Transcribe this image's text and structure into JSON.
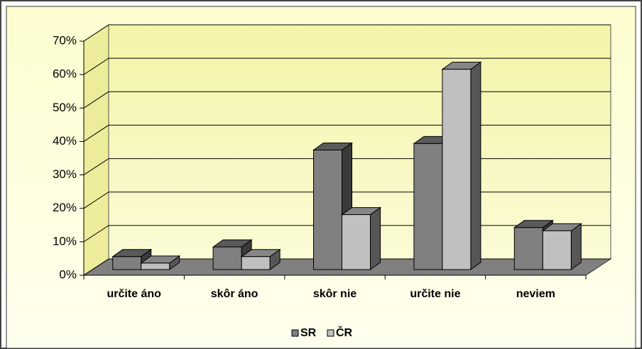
{
  "chart_data": {
    "type": "bar3d",
    "categories": [
      "určite áno",
      "skôr áno",
      "skôr nie",
      "určite nie",
      "neviem"
    ],
    "series": [
      {
        "name": "SR",
        "color": "#808080",
        "values": [
          4,
          7,
          37,
          39,
          13
        ]
      },
      {
        "name": "ČR",
        "color": "#c0c0c0",
        "values": [
          2,
          4,
          17,
          62,
          12
        ]
      }
    ],
    "ylim": [
      0,
      70
    ],
    "yticks": [
      {
        "value": 0,
        "label": "0%"
      },
      {
        "value": 10,
        "label": "10%"
      },
      {
        "value": 20,
        "label": "20%"
      },
      {
        "value": 30,
        "label": "30%"
      },
      {
        "value": 40,
        "label": "40%"
      },
      {
        "value": 50,
        "label": "50%"
      },
      {
        "value": 60,
        "label": "60%"
      },
      {
        "value": 70,
        "label": "70%"
      }
    ],
    "grid": true,
    "legend": "bottom"
  }
}
